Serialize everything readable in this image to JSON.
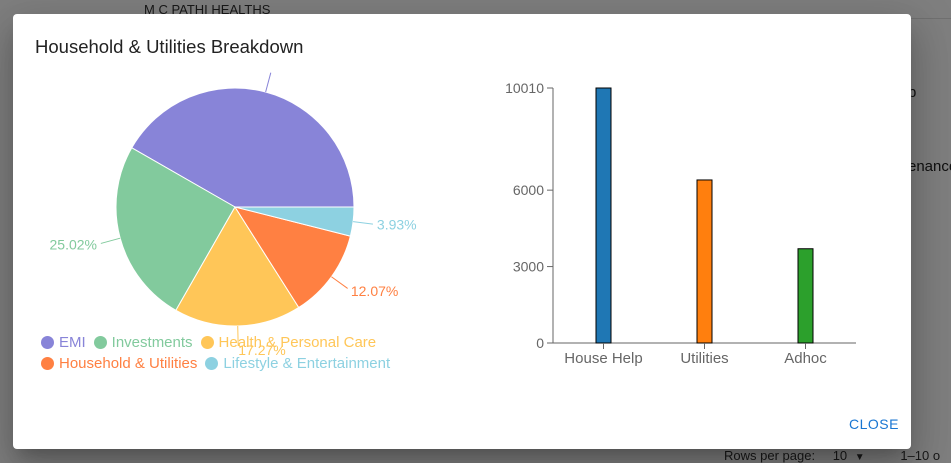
{
  "background": {
    "table_row_text": "M C PATHI HEALTHS",
    "right_text_1": "p",
    "right_text_2": "enance",
    "footer": {
      "rows_per_page_label": "Rows per page:",
      "rows_per_page_value": "10",
      "range_text": "1–10 o"
    }
  },
  "dialog": {
    "title": "Household & Utilities Breakdown",
    "close_label": "CLOSE"
  },
  "chart_data": [
    {
      "type": "pie",
      "slices": [
        {
          "label": "EMI",
          "value": 41.71,
          "color": "#8884d8",
          "display": ""
        },
        {
          "label": "Investments",
          "value": 25.02,
          "color": "#82ca9d",
          "display": "25.02%"
        },
        {
          "label": "Health & Personal Care",
          "value": 17.27,
          "color": "#ffc658",
          "display": "17.27%"
        },
        {
          "label": "Household & Utilities",
          "value": 12.07,
          "color": "#ff8042",
          "display": "12.07%"
        },
        {
          "label": "Lifestyle & Entertainment",
          "value": 3.93,
          "color": "#8dd1e1",
          "display": "3.93%"
        }
      ],
      "legend": "bottom"
    },
    {
      "type": "bar",
      "categories": [
        "House Help",
        "Utilities",
        "Adhoc"
      ],
      "values": [
        10010,
        6400,
        3700
      ],
      "colors": [
        "#1f77b4",
        "#ff7f0e",
        "#2ca02c"
      ],
      "yticks": [
        "0",
        "3000",
        "6000",
        "10010"
      ],
      "ylim": [
        0,
        10010
      ],
      "grid": false
    }
  ]
}
